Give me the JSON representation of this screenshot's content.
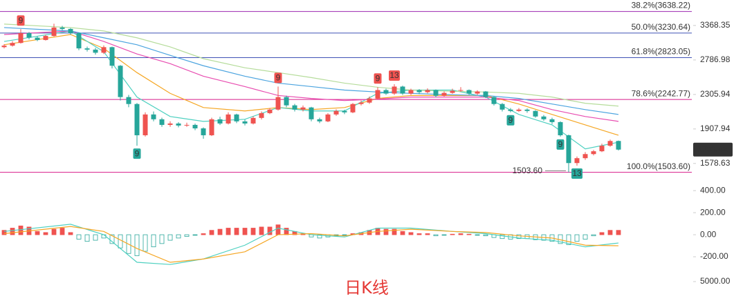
{
  "watermark": "日K线",
  "chart_data": [
    {
      "type": "candlestick",
      "log_scale": true,
      "ylim": [
        1392,
        3874
      ],
      "yticks": [
        3368.35,
        2786.98,
        2305.94,
        1907.94,
        1578.63
      ],
      "up_color": "#ef5350",
      "down_color": "#26a69a",
      "open": [
        2990,
        3015,
        3060,
        3230,
        3150,
        3110,
        3180,
        3330,
        3305,
        3230,
        2970,
        2950,
        2900,
        2990,
        2700,
        2273,
        2188,
        1843,
        2066,
        2012,
        1951,
        1966,
        1944,
        1951,
        1914,
        1843,
        2012,
        1966,
        2066,
        1989,
        1966,
        2027,
        2081,
        2122,
        2273,
        2172,
        2122,
        2147,
        2012,
        1989,
        2066,
        2106,
        2090,
        2188,
        2205,
        2256,
        2362,
        2317,
        2408,
        2317,
        2362,
        2335,
        2362,
        2290,
        2326,
        2353,
        2362,
        2317,
        2344,
        2273,
        2188,
        2122,
        2106,
        2122,
        2106,
        2043,
        2012,
        1981,
        1843,
        1582,
        1625,
        1662,
        1688,
        1740,
        1786
      ],
      "high": [
        3040,
        3090,
        3300,
        3250,
        3170,
        3200,
        3400,
        3360,
        3320,
        3240,
        3000,
        2980,
        3020,
        3000,
        2710,
        2300,
        2200,
        2090,
        2100,
        2030,
        1990,
        1980,
        1975,
        1965,
        1925,
        2030,
        2040,
        2090,
        2075,
        2010,
        2045,
        2100,
        2140,
        2408,
        2290,
        2190,
        2170,
        2155,
        2030,
        2080,
        2125,
        2120,
        2200,
        2230,
        2280,
        2400,
        2380,
        2440,
        2420,
        2380,
        2375,
        2385,
        2370,
        2345,
        2380,
        2400,
        2370,
        2360,
        2350,
        2280,
        2200,
        2140,
        2140,
        2135,
        2115,
        2060,
        2030,
        1990,
        1850,
        1640,
        1680,
        1700,
        1760,
        1800,
        1790
      ],
      "low": [
        2970,
        3000,
        3050,
        3120,
        3090,
        3100,
        3170,
        3280,
        3200,
        2940,
        2920,
        2870,
        2880,
        2660,
        2230,
        2150,
        1740,
        1830,
        1990,
        1930,
        1930,
        1925,
        1930,
        1895,
        1808,
        1835,
        1950,
        1955,
        1970,
        1945,
        1955,
        2010,
        2070,
        2110,
        2150,
        2100,
        2100,
        1990,
        1970,
        1980,
        2050,
        2070,
        2080,
        2170,
        2190,
        2240,
        2300,
        2300,
        2300,
        2300,
        2310,
        2320,
        2270,
        2280,
        2315,
        2340,
        2300,
        2300,
        2260,
        2170,
        2100,
        2090,
        2095,
        2085,
        2030,
        1995,
        1960,
        1830,
        1503.6,
        1560,
        1610,
        1650,
        1680,
        1730,
        1695
      ],
      "close": [
        3015,
        3060,
        3230,
        3150,
        3110,
        3180,
        3330,
        3305,
        3230,
        2970,
        2950,
        2900,
        2990,
        2700,
        2273,
        2188,
        1843,
        2066,
        2012,
        1951,
        1966,
        1944,
        1951,
        1914,
        1843,
        2012,
        1966,
        2066,
        1989,
        1966,
        2027,
        2081,
        2122,
        2273,
        2172,
        2122,
        2147,
        2012,
        1989,
        2066,
        2106,
        2090,
        2188,
        2205,
        2256,
        2362,
        2317,
        2408,
        2317,
        2362,
        2335,
        2362,
        2290,
        2326,
        2353,
        2362,
        2317,
        2344,
        2273,
        2188,
        2122,
        2106,
        2122,
        2106,
        2043,
        2012,
        1981,
        1843,
        1582,
        1625,
        1662,
        1688,
        1740,
        1786,
        1703.42
      ],
      "series": [
        {
          "color": "#f5a623",
          "x": [
            0,
            8,
            12,
            16,
            20,
            24,
            29,
            33,
            37,
            41,
            45,
            49,
            54,
            58,
            62,
            66,
            70,
            74
          ],
          "values": [
            3030,
            3205,
            2970,
            2600,
            2320,
            2146,
            2106,
            2146,
            2122,
            2146,
            2256,
            2293,
            2293,
            2293,
            2188,
            2066,
            1951,
            1843
          ]
        },
        {
          "color": "#4dd0c0",
          "x": [
            0,
            8,
            12,
            16,
            20,
            24,
            29,
            33,
            37,
            41,
            45,
            49,
            54,
            58,
            62,
            66,
            70,
            74
          ],
          "values": [
            3085,
            3268,
            2916,
            2273,
            2043,
            1989,
            2012,
            2146,
            2106,
            2106,
            2320,
            2362,
            2362,
            2273,
            2066,
            1951,
            1710,
            1774
          ]
        },
        {
          "color": "#e84cb0",
          "x": [
            0,
            8,
            12,
            16,
            20,
            24,
            29,
            33,
            37,
            41,
            45,
            49,
            54,
            58,
            62,
            66,
            70,
            74
          ],
          "values": [
            3205,
            3268,
            3085,
            2880,
            2731,
            2549,
            2408,
            2293,
            2256,
            2230,
            2248,
            2273,
            2273,
            2273,
            2230,
            2122,
            2043,
            1989
          ]
        },
        {
          "color": "#4aa3df",
          "x": [
            0,
            8,
            12,
            16,
            20,
            24,
            29,
            33,
            37,
            41,
            45,
            49,
            54,
            58,
            62,
            66,
            70,
            74
          ],
          "values": [
            3330,
            3268,
            3148,
            3030,
            2858,
            2700,
            2549,
            2454,
            2408,
            2362,
            2337,
            2320,
            2302,
            2293,
            2256,
            2188,
            2122,
            2066
          ]
        },
        {
          "color": "#b5dc9a",
          "x": [
            0,
            8,
            12,
            16,
            20,
            24,
            29,
            33,
            37,
            41,
            45,
            49,
            54,
            58,
            62,
            66,
            70,
            74
          ],
          "values": [
            3394,
            3330,
            3268,
            3148,
            2994,
            2807,
            2670,
            2600,
            2530,
            2454,
            2399,
            2362,
            2346,
            2337,
            2320,
            2273,
            2197,
            2163
          ]
        }
      ],
      "levels": [
        {
          "label": "38.2%(3638.22)",
          "value": 3638.22,
          "color": "#9c27b0"
        },
        {
          "label": "50.0%(3230.64)",
          "value": 3230.64,
          "color": "#3f51b5"
        },
        {
          "label": "61.8%(2823.05)",
          "value": 2823.05,
          "color": "#3f51b5"
        },
        {
          "label": "78.6%(2242.77)",
          "value": 2242.77,
          "color": "#d81b8a"
        },
        {
          "label": "100.0%(1503.60)",
          "value": 1503.6,
          "color": "#d81b8a"
        }
      ],
      "markers": [
        {
          "x": 2,
          "count": 9,
          "side": "above",
          "color": "#ef5350"
        },
        {
          "x": 33,
          "count": 9,
          "side": "above",
          "color": "#ef5350"
        },
        {
          "x": 45,
          "count": 9,
          "side": "above",
          "color": "#ef5350"
        },
        {
          "x": 47,
          "count": 13,
          "side": "above",
          "color": "#ef5350"
        },
        {
          "x": 16,
          "count": 9,
          "side": "below",
          "color": "#26a69a"
        },
        {
          "x": 61,
          "count": 9,
          "side": "below",
          "color": "#26a69a"
        },
        {
          "x": 67,
          "count": 9,
          "side": "below",
          "color": "#26a69a"
        },
        {
          "x": 69,
          "count": 13,
          "side": "below",
          "color": "#26a69a"
        }
      ],
      "annotations": [
        {
          "x": 68,
          "value": 1503.6,
          "label": "1503.60"
        }
      ]
    },
    {
      "type": "bar",
      "ylim": [
        -300,
        420
      ],
      "yticks": [
        {
          "value": 400,
          "label": "400.00"
        },
        {
          "value": 200,
          "label": "200.00"
        },
        {
          "value": 0,
          "label": "0.00"
        },
        {
          "value": -200,
          "label": "-200.00"
        }
      ],
      "up_color": "#ef5350",
      "down_color": "#26a69a",
      "values": [
        40,
        60,
        80,
        70,
        30,
        20,
        50,
        60,
        20,
        -40,
        -60,
        -50,
        -30,
        -80,
        -120,
        -170,
        -190,
        -150,
        -110,
        -80,
        -50,
        -30,
        -15,
        -5,
        10,
        40,
        50,
        60,
        60,
        60,
        60,
        70,
        70,
        90,
        60,
        30,
        10,
        -20,
        -30,
        -20,
        -10,
        -5,
        10,
        20,
        40,
        60,
        50,
        50,
        30,
        20,
        10,
        10,
        -10,
        -5,
        5,
        10,
        5,
        -5,
        -10,
        -25,
        -35,
        -40,
        -35,
        -35,
        -45,
        -50,
        -60,
        -80,
        -90,
        -60,
        -40,
        -10,
        20,
        40,
        40
      ],
      "series": [
        {
          "color": "#4dd0c0",
          "x": [
            0,
            8,
            12,
            16,
            20,
            24,
            29,
            33,
            37,
            41,
            45,
            49,
            54,
            58,
            62,
            66,
            70,
            74
          ],
          "values": [
            30,
            95,
            0,
            -250,
            -270,
            -220,
            -95,
            60,
            0,
            -20,
            60,
            60,
            30,
            10,
            -30,
            -50,
            -110,
            -75
          ]
        },
        {
          "color": "#f5a623",
          "x": [
            0,
            8,
            12,
            16,
            20,
            24,
            29,
            33,
            37,
            41,
            45,
            49,
            54,
            58,
            62,
            66,
            70,
            74
          ],
          "values": [
            10,
            75,
            30,
            -125,
            -250,
            -220,
            -155,
            0,
            10,
            -10,
            30,
            50,
            30,
            20,
            -10,
            -30,
            -95,
            -100
          ]
        }
      ]
    },
    {
      "type": "volume",
      "ylim": [
        0,
        5000
      ],
      "yticks": [
        {
          "value": 5000,
          "label": "5000.00"
        }
      ]
    }
  ]
}
